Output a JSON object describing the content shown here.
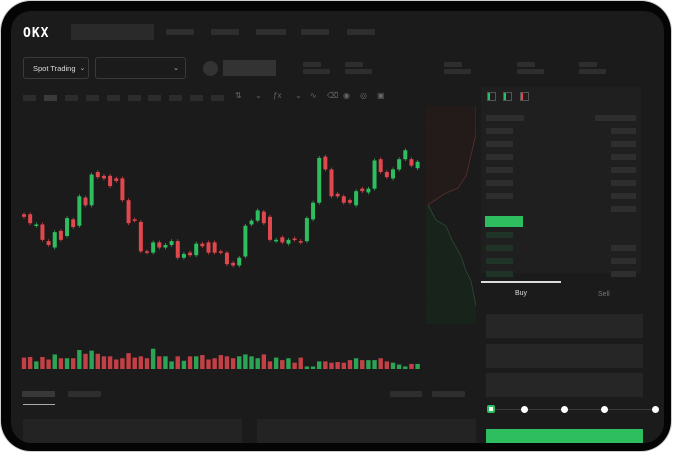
{
  "header": {
    "logo": "OKX",
    "market_selector": "Spot Trading",
    "pair_selector": ""
  },
  "order_form": {
    "tabs": [
      {
        "label": "Buy",
        "active": true
      },
      {
        "label": "Sell",
        "active": false
      }
    ],
    "slider_percent": 0,
    "slider_steps": [
      0,
      25,
      50,
      75,
      100
    ]
  },
  "colors": {
    "up": "#2ebd5f",
    "down": "#e0484d",
    "background": "#1b1b1b",
    "accent": "#2ebd5f"
  },
  "icons": [
    "candle-type-icon",
    "indicator-icon",
    "line-icon",
    "ruler-icon",
    "camera-icon",
    "settings-icon",
    "fullscreen-icon",
    "orderbook-both-icon",
    "orderbook-bids-icon",
    "orderbook-asks-icon",
    "chevron-down-icon"
  ],
  "chart_data": {
    "type": "candlestick",
    "candles": [
      [
        42,
        40
      ],
      [
        42,
        35
      ],
      [
        33,
        34
      ],
      [
        34,
        22
      ],
      [
        21,
        18
      ],
      [
        16,
        28
      ],
      [
        29,
        22
      ],
      [
        25,
        39
      ],
      [
        38,
        32
      ],
      [
        33,
        56
      ],
      [
        55,
        49
      ],
      [
        49,
        73
      ],
      [
        75,
        71
      ],
      [
        72,
        70
      ],
      [
        72,
        64
      ],
      [
        70,
        68
      ],
      [
        70,
        53
      ],
      [
        53,
        35
      ],
      [
        38,
        37
      ],
      [
        36,
        13
      ],
      [
        13,
        12
      ],
      [
        12,
        20
      ],
      [
        20,
        16
      ],
      [
        16,
        18
      ],
      [
        18,
        21
      ],
      [
        21,
        8
      ],
      [
        8,
        11
      ],
      [
        12,
        10
      ],
      [
        10,
        19
      ],
      [
        19,
        17
      ],
      [
        20,
        12
      ],
      [
        20,
        12
      ],
      [
        13,
        12
      ],
      [
        12,
        3
      ],
      [
        4,
        2
      ],
      [
        2,
        8
      ],
      [
        9,
        33
      ],
      [
        34,
        37
      ],
      [
        37,
        45
      ],
      [
        44,
        35
      ],
      [
        40,
        22
      ],
      [
        21,
        22
      ],
      [
        24,
        20
      ],
      [
        19,
        22
      ],
      [
        23,
        22
      ],
      [
        21,
        20
      ],
      [
        21,
        39
      ],
      [
        38,
        51
      ],
      [
        51,
        86
      ],
      [
        87,
        77
      ],
      [
        77,
        56
      ],
      [
        58,
        56
      ],
      [
        56,
        51
      ],
      [
        53,
        51
      ],
      [
        49,
        60
      ],
      [
        62,
        60
      ],
      [
        59,
        62
      ],
      [
        62,
        84
      ],
      [
        85,
        75
      ],
      [
        75,
        71
      ],
      [
        70,
        77
      ],
      [
        77,
        85
      ],
      [
        85,
        92
      ],
      [
        85,
        80
      ],
      [
        78,
        83
      ]
    ],
    "volume": [
      36,
      38,
      24,
      38,
      30,
      46,
      34,
      34,
      34,
      60,
      48,
      58,
      48,
      40,
      40,
      30,
      34,
      50,
      36,
      40,
      34,
      64,
      40,
      40,
      24,
      40,
      26,
      40,
      40,
      44,
      30,
      34,
      44,
      40,
      34,
      40,
      46,
      40,
      34,
      46,
      24,
      36,
      28,
      34,
      20,
      36,
      8,
      8,
      24,
      24,
      20,
      22,
      20,
      28,
      34,
      28,
      28,
      28,
      34,
      24,
      20,
      14,
      8,
      16,
      16
    ]
  }
}
